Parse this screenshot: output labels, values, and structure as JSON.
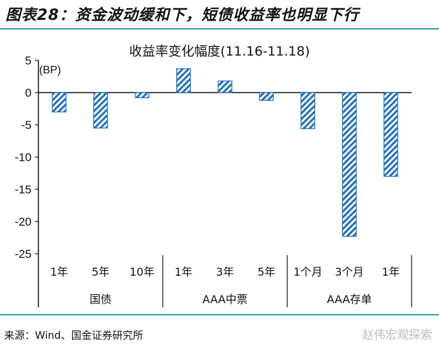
{
  "figure": {
    "title": "图表28：资金波动缓和下，短债收益率也明显下行",
    "source": "来源：Wind、国金证券研究所",
    "watermark": "赵伟宏观探索"
  },
  "colors": {
    "bar": "#1f6fbf",
    "rule": "#2e9fb5",
    "axis": "#111111"
  },
  "chart_data": {
    "type": "bar",
    "title": "收益率变化幅度(11.16-11.18)",
    "ylabel": "(BP)",
    "xlabel": "",
    "ylim": [
      -25,
      5
    ],
    "yticks": [
      5,
      0,
      -5,
      -10,
      -15,
      -20,
      -25
    ],
    "grid": false,
    "legend": null,
    "categories": [
      "1年",
      "5年",
      "10年",
      "1年",
      "3年",
      "5年",
      "1个月",
      "3个月",
      "1年"
    ],
    "groups": [
      {
        "name": "国债",
        "categories": [
          "1年",
          "5年",
          "10年"
        ]
      },
      {
        "name": "AAA中票",
        "categories": [
          "1年",
          "3年",
          "5年"
        ]
      },
      {
        "name": "AAA存单",
        "categories": [
          "1个月",
          "3个月",
          "1年"
        ]
      }
    ],
    "values": [
      -3.0,
      -5.5,
      -0.8,
      3.7,
      1.8,
      -1.2,
      -5.6,
      -22.3,
      -13.0
    ],
    "bar_style": "diagonal hatch, blue"
  }
}
